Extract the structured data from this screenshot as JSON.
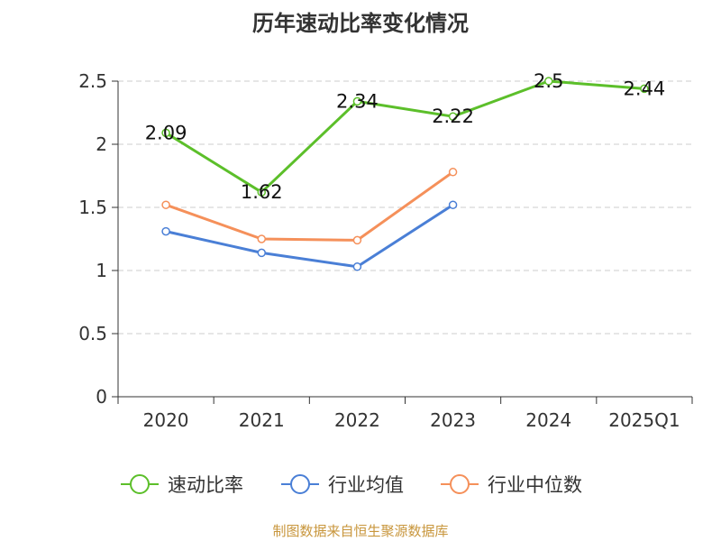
{
  "chart_data": {
    "type": "line",
    "title": "历年速动比率变化情况",
    "categories": [
      "2020",
      "2021",
      "2022",
      "2023",
      "2024",
      "2025Q1"
    ],
    "ylim": [
      0,
      2.5
    ],
    "yticks": [
      "0",
      "0.5",
      "1",
      "1.5",
      "2",
      "2.5"
    ],
    "grid": "horizontal dashed",
    "legend_position": "bottom",
    "series": [
      {
        "name": "速动比率",
        "color": "#5cbf2a",
        "values": [
          2.09,
          1.62,
          2.34,
          2.22,
          2.5,
          2.44
        ],
        "labels": [
          "2.09",
          "1.62",
          "2.34",
          "2.22",
          "2.5",
          "2.44"
        ]
      },
      {
        "name": "行业均值",
        "color": "#4a7fd6",
        "values": [
          1.31,
          1.14,
          1.03,
          1.52,
          null,
          null
        ]
      },
      {
        "name": "行业中位数",
        "color": "#f5905a",
        "values": [
          1.52,
          1.25,
          1.24,
          1.78,
          null,
          null
        ]
      }
    ]
  },
  "source": "制图数据来自恒生聚源数据库"
}
